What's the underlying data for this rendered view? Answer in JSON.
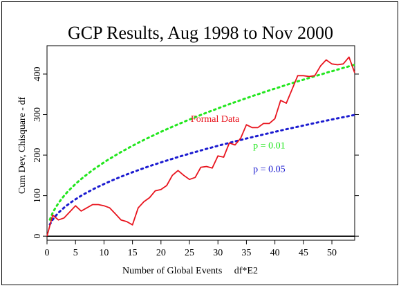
{
  "chart_data": {
    "type": "line",
    "title": "GCP Results, Aug 1998 to Nov 2000",
    "xlabel": "Number of Global Events     df*E2",
    "ylabel": "Cum Dev, Chisquare - df",
    "xlim": [
      0,
      54
    ],
    "ylim": [
      -10,
      470
    ],
    "x_ticks": [
      0,
      5,
      10,
      15,
      20,
      25,
      30,
      35,
      40,
      45,
      50
    ],
    "y_ticks": [
      0,
      100,
      200,
      300,
      400
    ],
    "y_tick_labels": [
      "0",
      "100",
      "200",
      "300",
      "400"
    ],
    "reference_line_y": 0,
    "series": [
      {
        "name": "Formal Data",
        "color": "#e8141e",
        "style": "solid",
        "x": [
          0,
          1,
          2,
          3,
          4,
          5,
          6,
          7,
          8,
          9,
          10,
          11,
          12,
          13,
          14,
          15,
          16,
          17,
          18,
          19,
          20,
          21,
          22,
          23,
          24,
          25,
          26,
          27,
          28,
          29,
          30,
          31,
          32,
          33,
          34,
          35,
          36,
          37,
          38,
          39,
          40,
          41,
          42,
          43,
          44,
          45,
          46,
          47,
          48,
          49,
          50,
          51,
          52,
          53,
          54
        ],
        "y": [
          0,
          52,
          40,
          45,
          60,
          75,
          62,
          70,
          78,
          78,
          75,
          70,
          55,
          40,
          36,
          28,
          70,
          85,
          95,
          112,
          115,
          125,
          150,
          162,
          150,
          140,
          145,
          170,
          172,
          168,
          198,
          195,
          230,
          225,
          242,
          275,
          268,
          268,
          278,
          278,
          290,
          335,
          328,
          362,
          396,
          396,
          394,
          396,
          420,
          435,
          425,
          423,
          425,
          442,
          403
        ]
      },
      {
        "name": "p = 0.01",
        "color": "#22e61e",
        "style": "dotted",
        "formula": "y = 2.326 * sqrt(2x) * 17.5"
      },
      {
        "name": "p = 0.05",
        "color": "#1b1bd0",
        "style": "dotted",
        "formula": "y = 1.645 * sqrt(2x) * 17.5"
      }
    ],
    "annotations": [
      {
        "text": "Formal Data",
        "color": "#e8141e",
        "x": 29.5,
        "y": 282
      },
      {
        "text": "p = 0.01",
        "color": "#22e61e",
        "x": 39,
        "y": 216
      },
      {
        "text": "p = 0.05",
        "color": "#1b1bd0",
        "x": 39,
        "y": 158
      }
    ],
    "grid": false,
    "legend": "none"
  }
}
